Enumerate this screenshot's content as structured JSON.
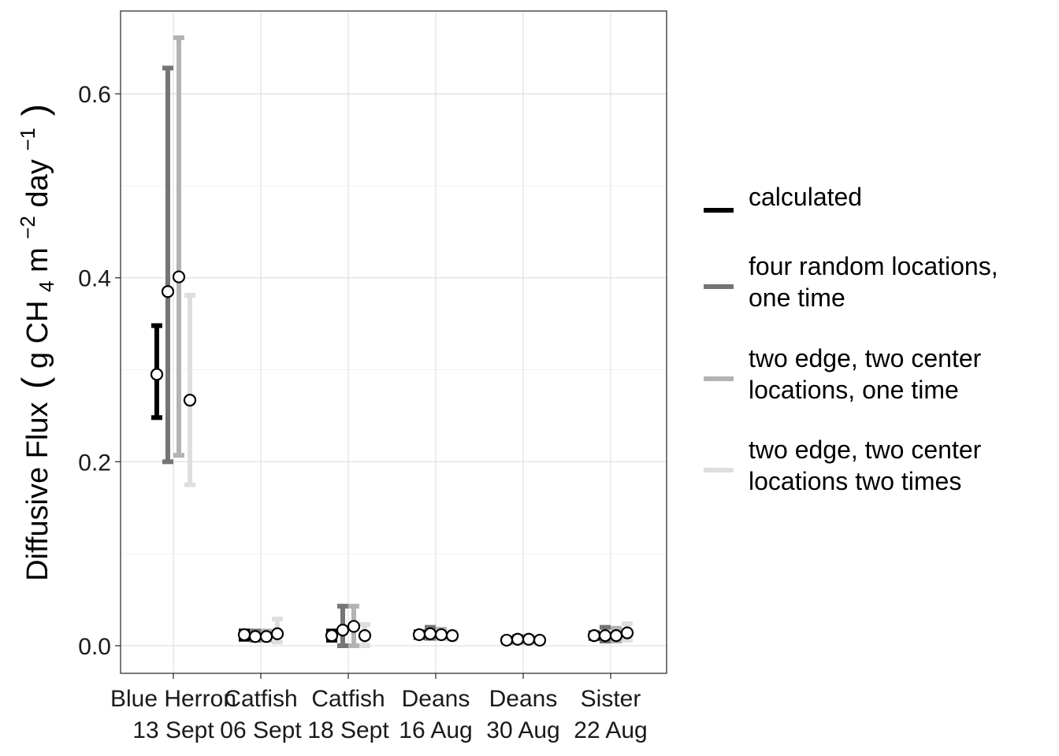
{
  "chart_data": {
    "type": "errorbar",
    "ylabel": {
      "prefix": "Diffusive Flux",
      "open": "(",
      "g": "g CH",
      "sub": "4",
      "m": " m",
      "sup1": "−2",
      "day": " day",
      "sup2": "−1",
      "close": ")"
    },
    "ylim": [
      -0.03,
      0.69
    ],
    "yticks": [
      {
        "value": 0.0,
        "label": "0.0"
      },
      {
        "value": 0.2,
        "label": "0.2"
      },
      {
        "value": 0.4,
        "label": "0.4"
      },
      {
        "value": 0.6,
        "label": "0.6"
      }
    ],
    "grid": true,
    "legend_position": "right",
    "categories": [
      {
        "line1": "Blue Herron",
        "line2": "13 Sept"
      },
      {
        "line1": "Catfish",
        "line2": "06 Sept"
      },
      {
        "line1": "Catfish",
        "line2": "18 Sept"
      },
      {
        "line1": "Deans",
        "line2": "16 Aug"
      },
      {
        "line1": "Deans",
        "line2": "30 Aug"
      },
      {
        "line1": "Sister",
        "line2": "22 Aug"
      }
    ],
    "series": [
      {
        "name": "calculated",
        "color": "#000000",
        "points": [
          {
            "y": 0.295,
            "lo": 0.248,
            "hi": 0.348
          },
          {
            "y": 0.012,
            "lo": 0.007,
            "hi": 0.016
          },
          {
            "y": 0.011,
            "lo": 0.006,
            "hi": 0.016
          },
          {
            "y": 0.012,
            "lo": 0.009,
            "hi": 0.015
          },
          {
            "y": 0.006,
            "lo": 0.004,
            "hi": 0.008
          },
          {
            "y": 0.011,
            "lo": 0.008,
            "hi": 0.014
          }
        ]
      },
      {
        "name": "four random locations, one time",
        "color": "#757575",
        "points": [
          {
            "y": 0.385,
            "lo": 0.2,
            "hi": 0.628
          },
          {
            "y": 0.01,
            "lo": 0.006,
            "hi": 0.016
          },
          {
            "y": 0.017,
            "lo": 0.0,
            "hi": 0.043
          },
          {
            "y": 0.013,
            "lo": 0.008,
            "hi": 0.02
          },
          {
            "y": 0.007,
            "lo": 0.004,
            "hi": 0.01
          },
          {
            "y": 0.011,
            "lo": 0.005,
            "hi": 0.02
          }
        ]
      },
      {
        "name": "two edge, two center locations, one time",
        "color": "#b3b3b3",
        "points": [
          {
            "y": 0.401,
            "lo": 0.207,
            "hi": 0.661
          },
          {
            "y": 0.01,
            "lo": 0.006,
            "hi": 0.016
          },
          {
            "y": 0.021,
            "lo": 0.0,
            "hi": 0.043
          },
          {
            "y": 0.012,
            "lo": 0.008,
            "hi": 0.018
          },
          {
            "y": 0.007,
            "lo": 0.004,
            "hi": 0.01
          },
          {
            "y": 0.011,
            "lo": 0.005,
            "hi": 0.019
          }
        ]
      },
      {
        "name": "two edge, two center locations two times",
        "color": "#dedede",
        "points": [
          {
            "y": 0.267,
            "lo": 0.175,
            "hi": 0.381
          },
          {
            "y": 0.013,
            "lo": 0.004,
            "hi": 0.029
          },
          {
            "y": 0.011,
            "lo": 0.0,
            "hi": 0.023
          },
          {
            "y": 0.011,
            "lo": 0.007,
            "hi": 0.015
          },
          {
            "y": 0.006,
            "lo": 0.003,
            "hi": 0.009
          },
          {
            "y": 0.014,
            "lo": 0.006,
            "hi": 0.024
          }
        ]
      }
    ],
    "legend": [
      {
        "lines": [
          "calculated"
        ]
      },
      {
        "lines": [
          "four random locations,",
          "one time"
        ]
      },
      {
        "lines": [
          "two edge, two center",
          "locations, one time"
        ]
      },
      {
        "lines": [
          "two edge, two center",
          "locations two times"
        ]
      }
    ]
  }
}
